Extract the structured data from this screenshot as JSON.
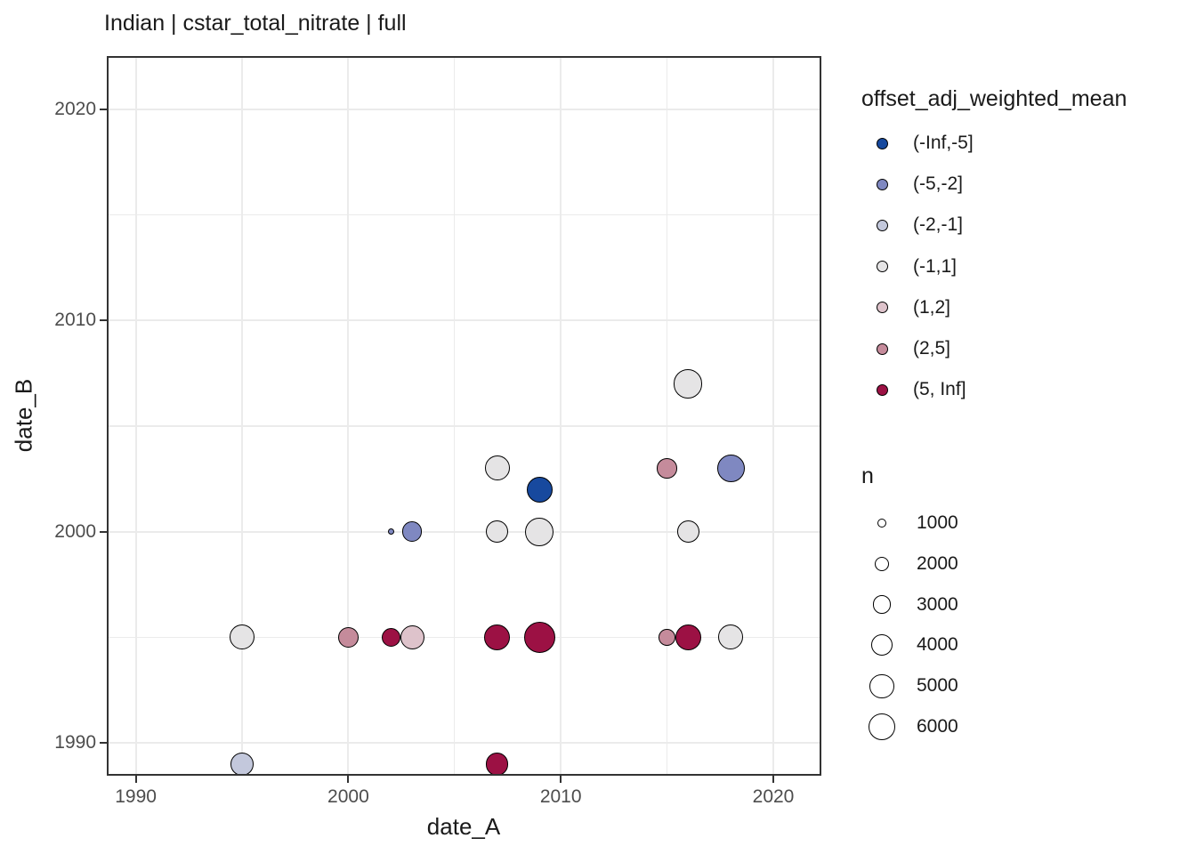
{
  "title": "Indian | cstar_total_nitrate | full",
  "axes": {
    "x": {
      "label": "date_A",
      "breaks": [
        1990,
        2000,
        2010,
        2020
      ],
      "minor_breaks": [
        1995,
        2005,
        2015
      ],
      "range": [
        1988.6,
        2022.3
      ]
    },
    "y": {
      "label": "date_B",
      "breaks": [
        1990,
        2000,
        2010,
        2020
      ],
      "minor_breaks": [
        1995,
        2005,
        2015
      ],
      "range": [
        1988.4,
        2022.5
      ]
    }
  },
  "color_legend": {
    "title": "offset_adj_weighted_mean"
  },
  "size_legend": {
    "title": "n",
    "items": [
      {
        "label": "1000",
        "n": 1000
      },
      {
        "label": "2000",
        "n": 2000
      },
      {
        "label": "3000",
        "n": 3000
      },
      {
        "label": "4000",
        "n": 4000
      },
      {
        "label": "5000",
        "n": 5000
      },
      {
        "label": "6000",
        "n": 6000
      }
    ]
  },
  "style": {
    "background": "#FFFFFF",
    "grid_color": "#EBEBEB",
    "panel_border_color": "#333333",
    "tick_color": "#333333",
    "tick_label_color": "#4D4D4D",
    "text_color": "#1A1A1A",
    "point_stroke": "#000000"
  },
  "chart_data": {
    "type": "scatter",
    "title": "Indian | cstar_total_nitrate | full",
    "xlabel": "date_A",
    "ylabel": "date_B",
    "xlim": [
      1988.6,
      2022.3
    ],
    "ylim": [
      1988.4,
      2022.5
    ],
    "grid": true,
    "legend_position": "right",
    "color_variable": "offset_adj_weighted_mean",
    "size_variable": "n",
    "color_bins": [
      {
        "label": "(-Inf,-5]",
        "color": "#17499E"
      },
      {
        "label": "(-5,-2]",
        "color": "#7F88C1"
      },
      {
        "label": "(-2,-1]",
        "color": "#C3C8DC"
      },
      {
        "label": "(-1,1]",
        "color": "#E5E4E5"
      },
      {
        "label": "(1,2]",
        "color": "#DEC3CB"
      },
      {
        "label": "(2,5]",
        "color": "#C58B9B"
      },
      {
        "label": "(5, Inf]",
        "color": "#9C1144"
      }
    ],
    "points": [
      {
        "date_A": 1995,
        "date_B": 1989,
        "bin": "(-2,-1]",
        "n": 4600
      },
      {
        "date_A": 2007,
        "date_B": 1989,
        "bin": "(5, Inf]",
        "n": 4600
      },
      {
        "date_A": 1995,
        "date_B": 1995,
        "bin": "(-1,1]",
        "n": 5300
      },
      {
        "date_A": 2000,
        "date_B": 1995,
        "bin": "(2,5]",
        "n": 3700
      },
      {
        "date_A": 2002,
        "date_B": 1995,
        "bin": "(5, Inf]",
        "n": 3200
      },
      {
        "date_A": 2003,
        "date_B": 1995,
        "bin": "(1,2]",
        "n": 5000
      },
      {
        "date_A": 2007,
        "date_B": 1995,
        "bin": "(5, Inf]",
        "n": 5800
      },
      {
        "date_A": 2009,
        "date_B": 1995,
        "bin": "(5, Inf]",
        "n": 8000
      },
      {
        "date_A": 2015,
        "date_B": 1995,
        "bin": "(2,5]",
        "n": 2600
      },
      {
        "date_A": 2016,
        "date_B": 1995,
        "bin": "(5, Inf]",
        "n": 5800
      },
      {
        "date_A": 2018,
        "date_B": 1995,
        "bin": "(-1,1]",
        "n": 5300
      },
      {
        "date_A": 2002,
        "date_B": 2000,
        "bin": "(-5,-2]",
        "n": 550
      },
      {
        "date_A": 2003,
        "date_B": 2000,
        "bin": "(-5,-2]",
        "n": 3600
      },
      {
        "date_A": 2007,
        "date_B": 2000,
        "bin": "(-1,1]",
        "n": 4300
      },
      {
        "date_A": 2009,
        "date_B": 2000,
        "bin": "(-1,1]",
        "n": 6800
      },
      {
        "date_A": 2016,
        "date_B": 2000,
        "bin": "(-1,1]",
        "n": 4500
      },
      {
        "date_A": 2009,
        "date_B": 2002,
        "bin": "(-Inf,-5]",
        "n": 5700
      },
      {
        "date_A": 2007,
        "date_B": 2003,
        "bin": "(-1,1]",
        "n": 5300
      },
      {
        "date_A": 2015,
        "date_B": 2003,
        "bin": "(2,5]",
        "n": 3600
      },
      {
        "date_A": 2018,
        "date_B": 2003,
        "bin": "(-5,-2]",
        "n": 6400
      },
      {
        "date_A": 2016,
        "date_B": 2007,
        "bin": "(-1,1]",
        "n": 6800
      }
    ]
  }
}
